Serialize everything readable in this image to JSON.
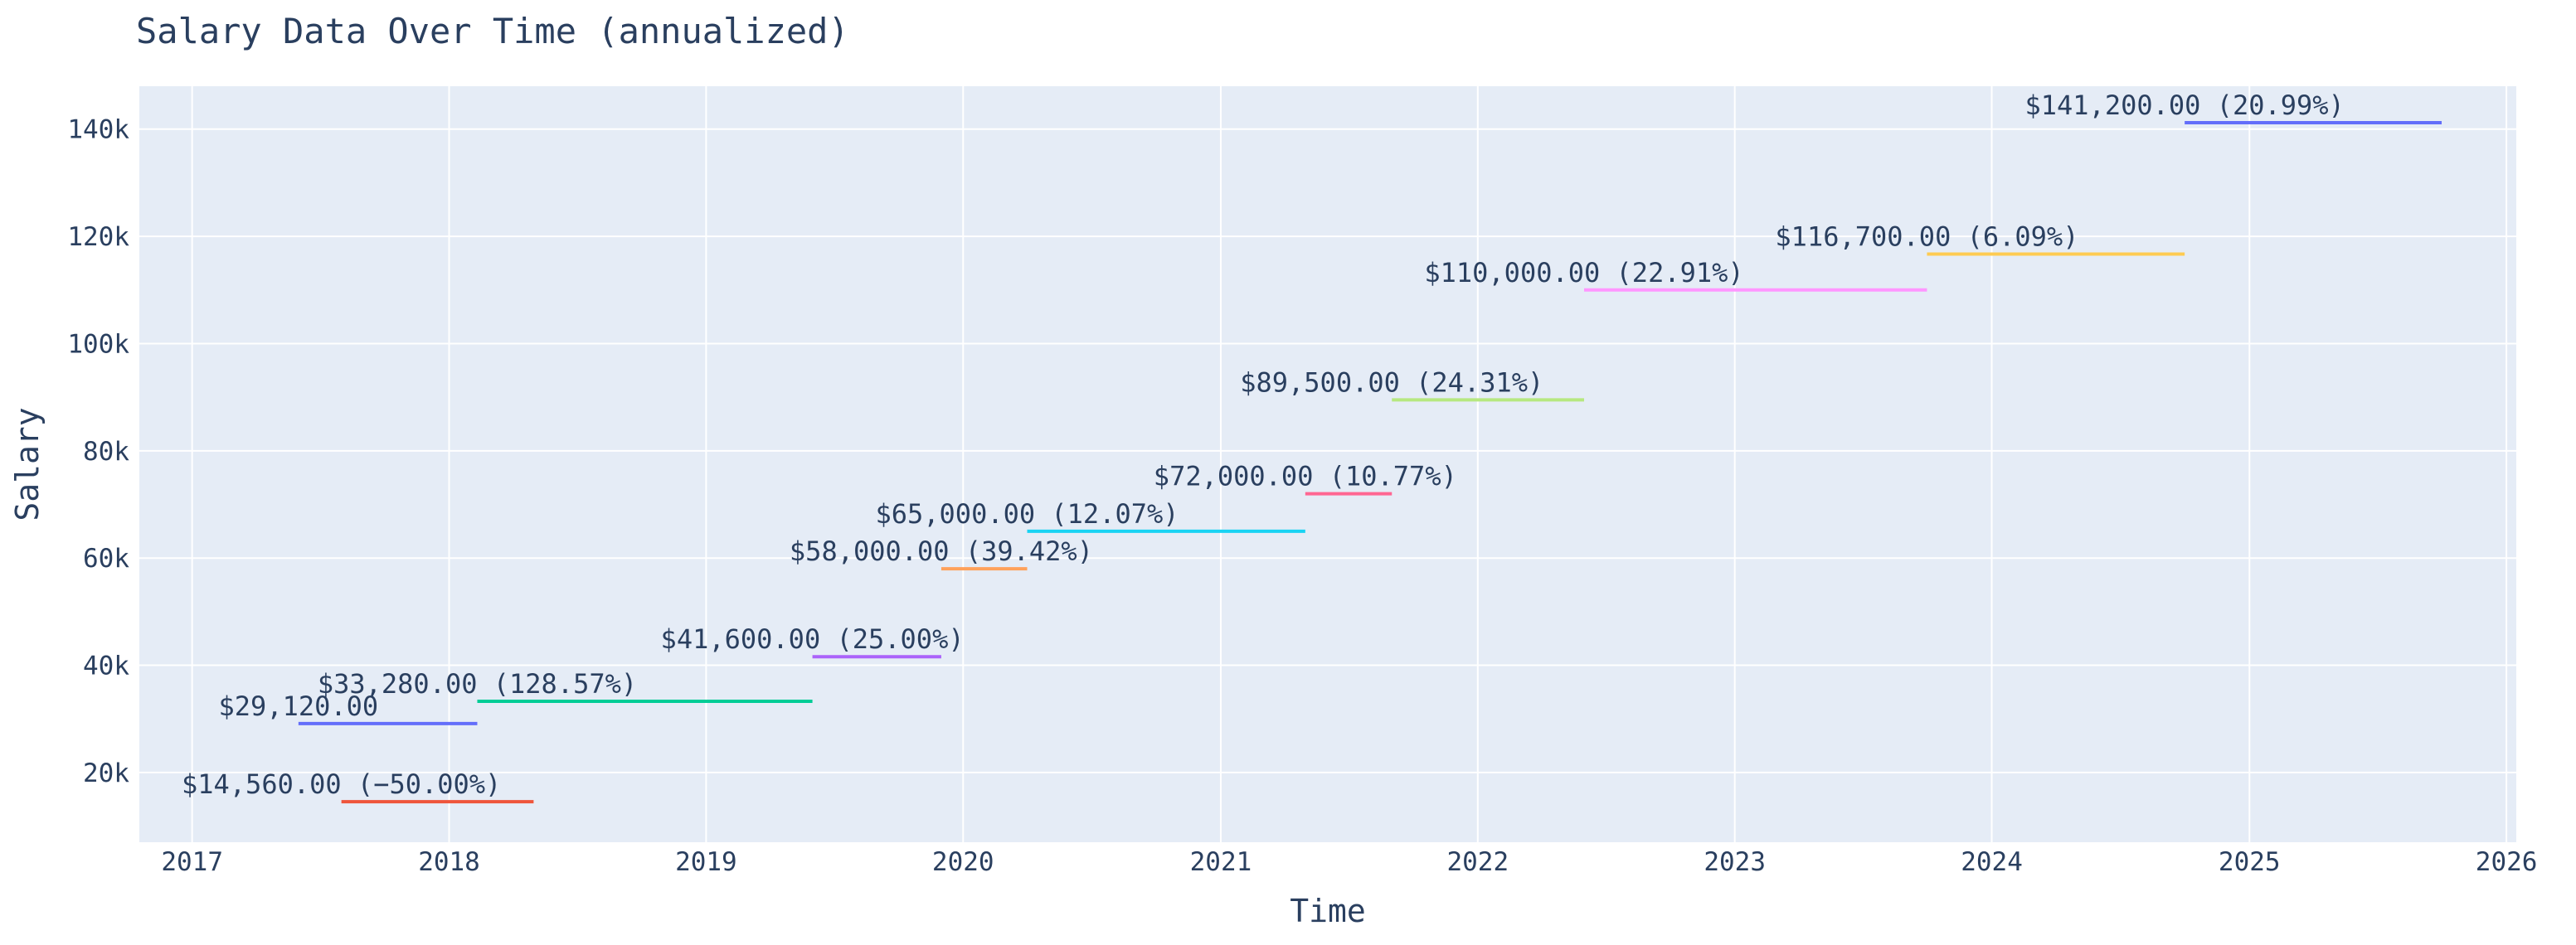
{
  "chart_data": {
    "type": "line",
    "title": "Salary Data Over Time (annualized)",
    "xlabel": "Time",
    "ylabel": "Salary",
    "xlim": [
      "2016-10-18",
      "2026-01-15"
    ],
    "ylim": [
      7000,
      148000
    ],
    "x_ticks": [
      "2017",
      "2018",
      "2019",
      "2020",
      "2021",
      "2022",
      "2023",
      "2024",
      "2025",
      "2026"
    ],
    "y_ticks": [
      {
        "value": 20000,
        "label": "20k"
      },
      {
        "value": 40000,
        "label": "40k"
      },
      {
        "value": 60000,
        "label": "60k"
      },
      {
        "value": 80000,
        "label": "80k"
      },
      {
        "value": 100000,
        "label": "100k"
      },
      {
        "value": 120000,
        "label": "120k"
      },
      {
        "value": 140000,
        "label": "140k"
      }
    ],
    "grid": true,
    "legend": "none",
    "segments": [
      {
        "start": "2017-06-01",
        "end": "2018-02-10",
        "value": 29120,
        "label": "$29,120.00",
        "color": "#636efa"
      },
      {
        "start": "2017-08-01",
        "end": "2018-05-01",
        "value": 14560,
        "label": "$14,560.00 (−50.00%)",
        "color": "#ef553b"
      },
      {
        "start": "2018-02-10",
        "end": "2019-06-01",
        "value": 33280,
        "label": "$33,280.00 (128.57%)",
        "color": "#00cc96"
      },
      {
        "start": "2019-06-01",
        "end": "2019-12-01",
        "value": 41600,
        "label": "$41,600.00 (25.00%)",
        "color": "#ab63fa"
      },
      {
        "start": "2019-12-01",
        "end": "2020-04-01",
        "value": 58000,
        "label": "$58,000.00 (39.42%)",
        "color": "#ffa15a"
      },
      {
        "start": "2020-04-01",
        "end": "2021-05-01",
        "value": 65000,
        "label": "$65,000.00 (12.07%)",
        "color": "#19d3f3"
      },
      {
        "start": "2021-05-01",
        "end": "2021-09-01",
        "value": 72000,
        "label": "$72,000.00 (10.77%)",
        "color": "#ff6692"
      },
      {
        "start": "2021-09-01",
        "end": "2022-06-01",
        "value": 89500,
        "label": "$89,500.00 (24.31%)",
        "color": "#b6e880"
      },
      {
        "start": "2022-06-01",
        "end": "2023-10-01",
        "value": 110000,
        "label": "$110,000.00 (22.91%)",
        "color": "#ff97ff"
      },
      {
        "start": "2023-10-01",
        "end": "2024-10-01",
        "value": 116700,
        "label": "$116,700.00 (6.09%)",
        "color": "#fecb52"
      },
      {
        "start": "2024-10-01",
        "end": "2025-10-01",
        "value": 141200,
        "label": "$141,200.00 (20.99%)",
        "color": "#636efa"
      }
    ]
  },
  "colors": {
    "plot_background": "#e5ecf6",
    "text": "#2a3f5f",
    "grid": "#ffffff"
  }
}
